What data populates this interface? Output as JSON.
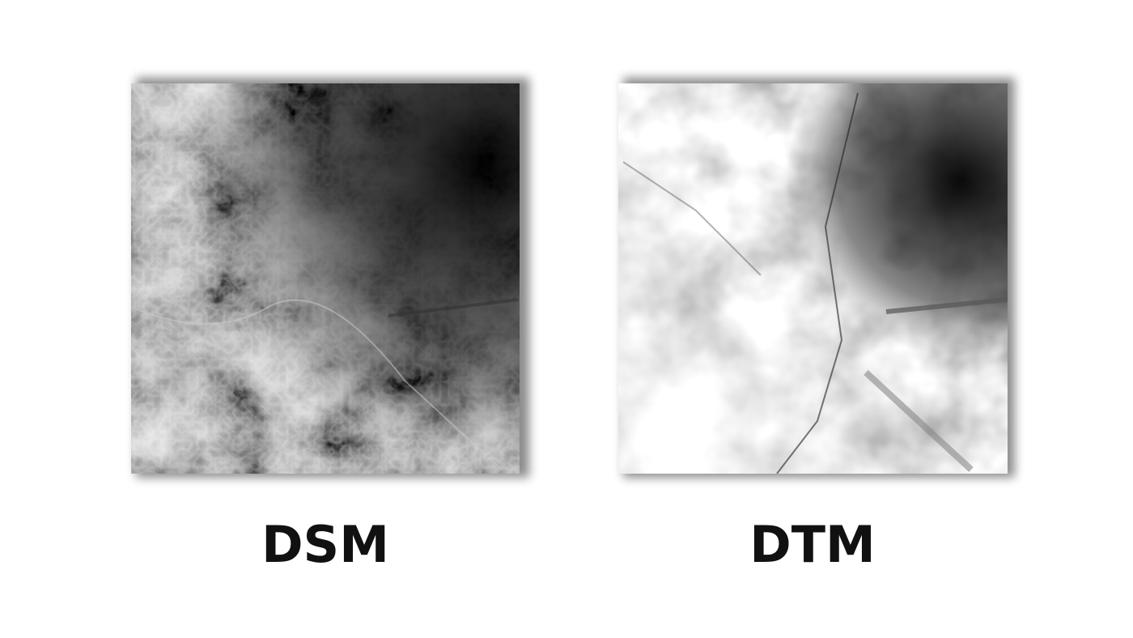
{
  "panels": [
    {
      "label": "DSM"
    },
    {
      "label": "DTM"
    }
  ]
}
